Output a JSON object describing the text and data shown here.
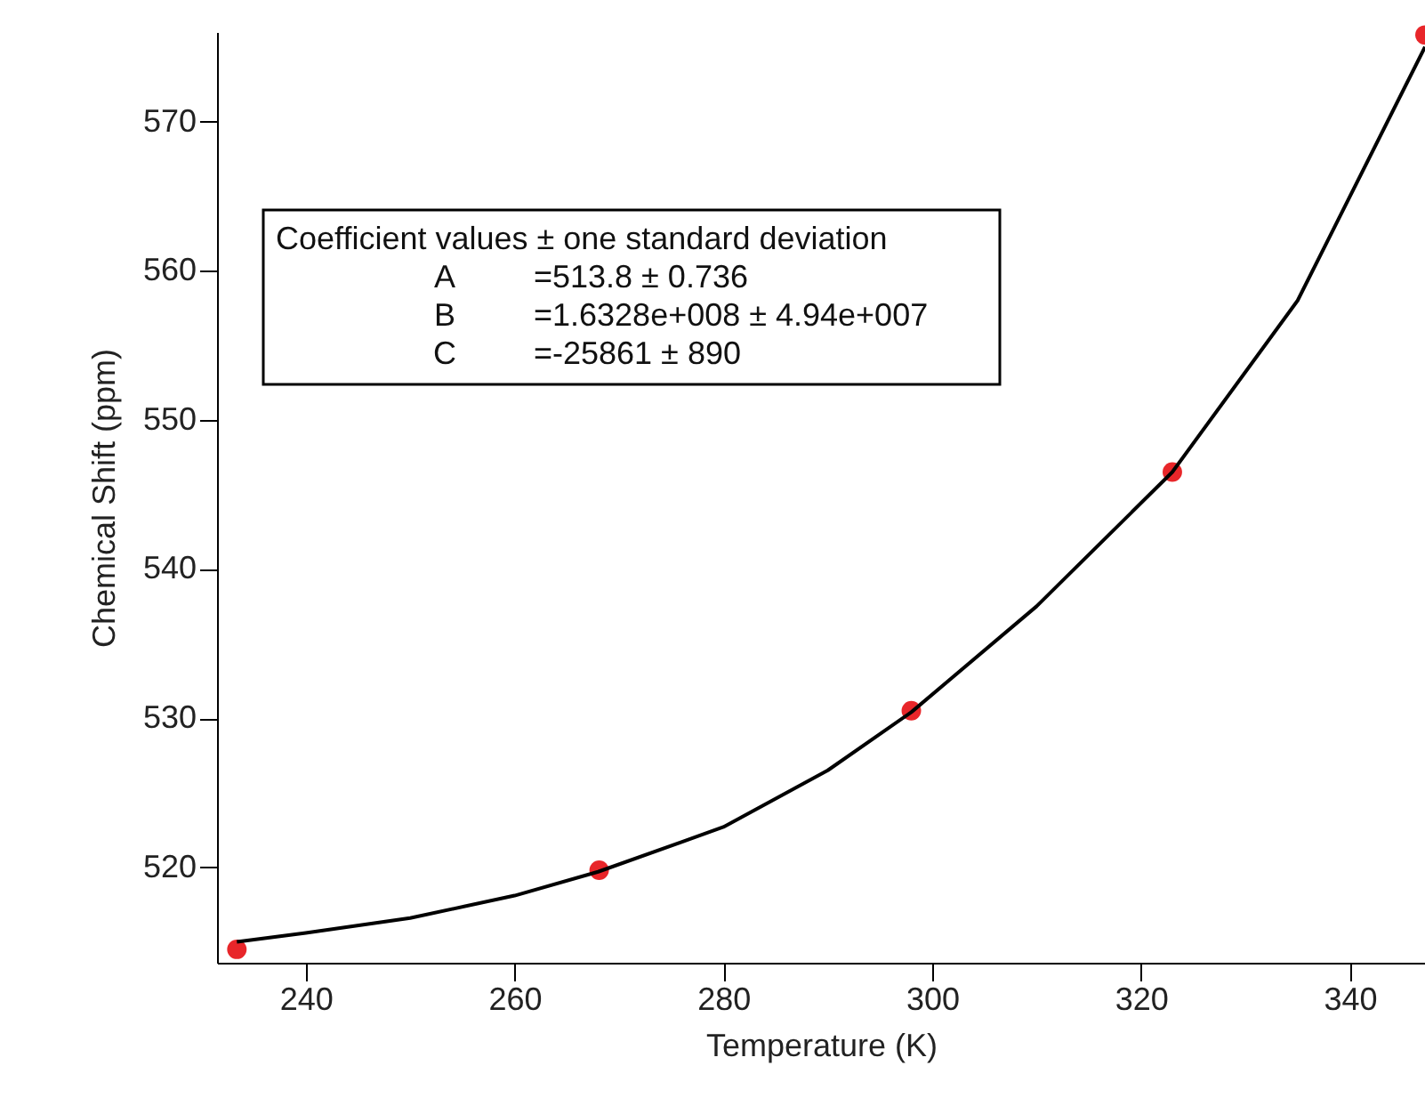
{
  "chart_data": {
    "type": "scatter",
    "xlabel": "Temperature (K)",
    "ylabel": "Chemical Shift (ppm)",
    "xlim": [
      231.5,
      347.2
    ],
    "ylim": [
      513.6,
      576
    ],
    "xticks": [
      240,
      260,
      280,
      300,
      320,
      340
    ],
    "yticks": [
      520,
      530,
      540,
      550,
      560,
      570
    ],
    "grid": false,
    "annotations": [
      "Coefficient values ± one standard deviation",
      "A",
      "=513.8 ± 0.736",
      "B",
      "=1.6328e+008 ± 4.94e+007",
      "C",
      "=-25861 ± 890"
    ],
    "series": [
      {
        "marker": "circle",
        "color": "#e8262a",
        "x": [
          233.4,
          268.1,
          298.0,
          323.0,
          347.2
        ],
        "values": [
          514.5,
          519.8,
          530.5,
          546.5,
          575.8
        ]
      },
      {
        "type": "line",
        "color": "#000000",
        "line_style": "solid",
        "x": [
          233.4,
          240,
          250,
          260,
          268,
          280,
          290,
          298,
          310,
          323,
          335,
          347.2
        ],
        "values": [
          515.0,
          515.6,
          516.6,
          518.1,
          519.7,
          522.7,
          526.5,
          530.4,
          537.5,
          546.5,
          558.0,
          575.0
        ]
      }
    ]
  }
}
